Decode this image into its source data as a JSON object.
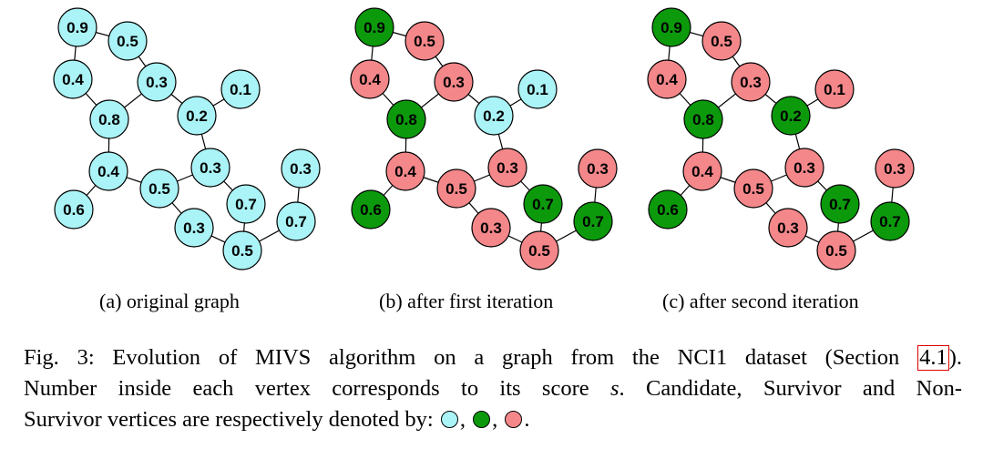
{
  "colors": {
    "candidate": "#aaf3f6",
    "survivor": "#0c9a0c",
    "non_survivor": "#f4878a",
    "edge": "#000000"
  },
  "graphs": [
    {
      "caption": "(a) original graph",
      "states": [
        "c",
        "c",
        "c",
        "c",
        "c",
        "c",
        "c",
        "c",
        "c",
        "c",
        "c",
        "c",
        "c",
        "c",
        "c",
        "c"
      ]
    },
    {
      "caption": "(b) after first iteration",
      "states": [
        "s",
        "n",
        "n",
        "n",
        "s",
        "c",
        "c",
        "n",
        "s",
        "n",
        "n",
        "s",
        "n",
        "n",
        "s",
        "n"
      ]
    },
    {
      "caption": "(c) after second iteration",
      "states": [
        "s",
        "n",
        "n",
        "n",
        "s",
        "s",
        "n",
        "n",
        "s",
        "n",
        "n",
        "s",
        "n",
        "n",
        "s",
        "n"
      ]
    }
  ],
  "vertex_scores": [
    "0.9",
    "0.5",
    "0.4",
    "0.3",
    "0.8",
    "0.2",
    "0.1",
    "0.4",
    "0.6",
    "0.3",
    "0.5",
    "0.7",
    "0.3",
    "0.3",
    "0.7",
    "0.5"
  ],
  "edges": [
    [
      0,
      1
    ],
    [
      0,
      2
    ],
    [
      1,
      3
    ],
    [
      2,
      4
    ],
    [
      3,
      4
    ],
    [
      3,
      5
    ],
    [
      5,
      6
    ],
    [
      5,
      9
    ],
    [
      4,
      7
    ],
    [
      7,
      8
    ],
    [
      7,
      10
    ],
    [
      9,
      10
    ],
    [
      9,
      11
    ],
    [
      10,
      12
    ],
    [
      11,
      15
    ],
    [
      12,
      15
    ],
    [
      15,
      14
    ],
    [
      14,
      13
    ]
  ],
  "caption": {
    "part1": "Fig. 3: Evolution of MIVS algorithm on a graph from the NCI1 dataset (Section",
    "ref": "4.1",
    "part2": ").",
    "line2a": "Number inside each vertex corresponds to its score",
    "symbol": "s",
    "line2b": ". Candidate, Survivor and Non-",
    "line3": "Survivor vertices are respectively denoted by:",
    "sep": ",",
    "end": "."
  }
}
